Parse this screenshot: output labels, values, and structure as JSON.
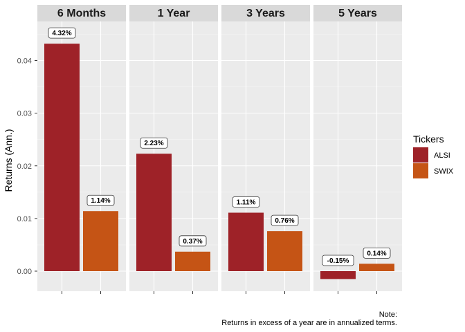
{
  "chart_data": {
    "type": "bar",
    "facets": [
      "6 Months",
      "1 Year",
      "3 Years",
      "5 Years"
    ],
    "ylabel": "Returns (Ann.)",
    "xlabel": "",
    "ylim": [
      -0.0025,
      0.0465
    ],
    "yticks": [
      0.0,
      0.01,
      0.02,
      0.03,
      0.04
    ],
    "ytick_labels": [
      "0.00",
      "0.01",
      "0.02",
      "0.03",
      "0.04"
    ],
    "grid": true,
    "legend": {
      "title": "Tickers",
      "placement": "right",
      "entries": [
        "ALSI",
        "SWIX"
      ]
    },
    "series": [
      {
        "name": "ALSI",
        "color": "#9e2228",
        "values": [
          0.0432,
          0.0223,
          0.0111,
          -0.0015
        ],
        "labels": [
          "4.32%",
          "2.23%",
          "1.11%",
          "-0.15%"
        ]
      },
      {
        "name": "SWIX",
        "color": "#c55415",
        "values": [
          0.0114,
          0.0037,
          0.0076,
          0.0014
        ],
        "labels": [
          "1.14%",
          "0.37%",
          "0.76%",
          "0.14%"
        ]
      }
    ],
    "caption": [
      "Note:",
      "Returns in excess of a year are in annualized terms."
    ]
  }
}
